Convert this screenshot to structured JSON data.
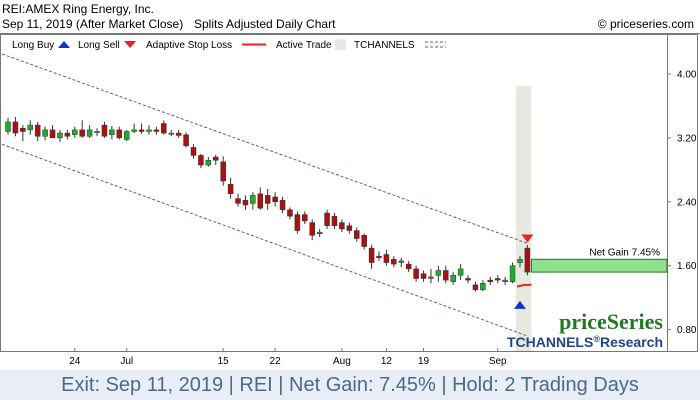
{
  "header": {
    "title": "REI:AMEX Ring Energy, Inc.",
    "subtitle": "Sep 11, 2019 (After Market Close)",
    "chart_type": "Splits Adjusted Daily Chart",
    "copyright": "© priceseries.com"
  },
  "legend": {
    "long_buy": "Long Buy",
    "long_sell": "Long Sell",
    "adaptive_stop": "Adaptive Stop Loss",
    "active_trade": "Active Trade",
    "tchannels": "TCHANNELS"
  },
  "brand": {
    "logo_text": "priceSeries",
    "research_prefix": "TCHANNELS",
    "registered": "®",
    "research_suffix": "Research"
  },
  "footer": {
    "text": "Exit: Sep 11, 2019 | REI | Net Gain: 7.45% | Hold: 2 Trading Days"
  },
  "colors": {
    "up": "#22aa33",
    "down": "#aa1111",
    "buy_arrow": "#1133cc",
    "sell_arrow": "#ee2222",
    "stop_line": "#ee2222",
    "active_trade": "#e6e9df",
    "channel": "#4a6a8a",
    "gain_box": "#8fe08f",
    "logo": "#227722",
    "research": "#224488",
    "footer_text": "#4a6a8a",
    "footer_bg": "#e9eef6"
  },
  "chart_data": {
    "type": "candlestick",
    "ylim": [
      0.52,
      4.5
    ],
    "yticks": [
      "4.00",
      "3.20",
      "2.40",
      "1.60",
      "0.80"
    ],
    "xticks": [
      "24",
      "Jul",
      "15",
      "22",
      "Aug",
      "12",
      "19",
      "Sep"
    ],
    "candles": [
      {
        "o": 3.28,
        "h": 3.45,
        "l": 3.24,
        "c": 3.4
      },
      {
        "o": 3.4,
        "h": 3.46,
        "l": 3.22,
        "c": 3.26
      },
      {
        "o": 3.32,
        "h": 3.36,
        "l": 3.16,
        "c": 3.28
      },
      {
        "o": 3.3,
        "h": 3.42,
        "l": 3.24,
        "c": 3.36
      },
      {
        "o": 3.36,
        "h": 3.4,
        "l": 3.16,
        "c": 3.22
      },
      {
        "o": 3.22,
        "h": 3.34,
        "l": 3.17,
        "c": 3.3
      },
      {
        "o": 3.3,
        "h": 3.36,
        "l": 3.2,
        "c": 3.2
      },
      {
        "o": 3.2,
        "h": 3.3,
        "l": 3.15,
        "c": 3.26
      },
      {
        "o": 3.26,
        "h": 3.3,
        "l": 3.18,
        "c": 3.22
      },
      {
        "o": 3.24,
        "h": 3.34,
        "l": 3.2,
        "c": 3.3
      },
      {
        "o": 3.3,
        "h": 3.42,
        "l": 3.2,
        "c": 3.22
      },
      {
        "o": 3.22,
        "h": 3.36,
        "l": 3.2,
        "c": 3.3
      },
      {
        "o": 3.28,
        "h": 3.32,
        "l": 3.22,
        "c": 3.28
      },
      {
        "o": 3.36,
        "h": 3.4,
        "l": 3.2,
        "c": 3.22
      },
      {
        "o": 3.24,
        "h": 3.35,
        "l": 3.18,
        "c": 3.3
      },
      {
        "o": 3.3,
        "h": 3.34,
        "l": 3.18,
        "c": 3.2
      },
      {
        "o": 3.18,
        "h": 3.3,
        "l": 3.16,
        "c": 3.28
      },
      {
        "o": 3.28,
        "h": 3.38,
        "l": 3.26,
        "c": 3.3
      },
      {
        "o": 3.3,
        "h": 3.38,
        "l": 3.25,
        "c": 3.28
      },
      {
        "o": 3.28,
        "h": 3.36,
        "l": 3.24,
        "c": 3.3
      },
      {
        "o": 3.3,
        "h": 3.34,
        "l": 3.24,
        "c": 3.28
      },
      {
        "o": 3.38,
        "h": 3.42,
        "l": 3.24,
        "c": 3.26
      },
      {
        "o": 3.26,
        "h": 3.3,
        "l": 3.22,
        "c": 3.26
      },
      {
        "o": 3.26,
        "h": 3.3,
        "l": 3.2,
        "c": 3.23
      },
      {
        "o": 3.24,
        "h": 3.27,
        "l": 3.08,
        "c": 3.1
      },
      {
        "o": 3.08,
        "h": 3.12,
        "l": 2.94,
        "c": 2.98
      },
      {
        "o": 2.98,
        "h": 3.0,
        "l": 2.82,
        "c": 2.86
      },
      {
        "o": 2.86,
        "h": 2.96,
        "l": 2.84,
        "c": 2.92
      },
      {
        "o": 2.96,
        "h": 2.99,
        "l": 2.86,
        "c": 2.92
      },
      {
        "o": 2.9,
        "h": 2.97,
        "l": 2.6,
        "c": 2.66
      },
      {
        "o": 2.62,
        "h": 2.7,
        "l": 2.44,
        "c": 2.5
      },
      {
        "o": 2.44,
        "h": 2.5,
        "l": 2.34,
        "c": 2.38
      },
      {
        "o": 2.42,
        "h": 2.48,
        "l": 2.3,
        "c": 2.36
      },
      {
        "o": 2.38,
        "h": 2.52,
        "l": 2.3,
        "c": 2.48
      },
      {
        "o": 2.5,
        "h": 2.58,
        "l": 2.3,
        "c": 2.32
      },
      {
        "o": 2.48,
        "h": 2.56,
        "l": 2.3,
        "c": 2.38
      },
      {
        "o": 2.46,
        "h": 2.52,
        "l": 2.34,
        "c": 2.4
      },
      {
        "o": 2.42,
        "h": 2.46,
        "l": 2.26,
        "c": 2.3
      },
      {
        "o": 2.3,
        "h": 2.33,
        "l": 2.18,
        "c": 2.22
      },
      {
        "o": 2.24,
        "h": 2.28,
        "l": 2.0,
        "c": 2.04
      },
      {
        "o": 2.24,
        "h": 2.28,
        "l": 2.12,
        "c": 2.16
      },
      {
        "o": 2.14,
        "h": 2.18,
        "l": 1.92,
        "c": 1.98
      },
      {
        "o": 2.0,
        "h": 2.06,
        "l": 1.96,
        "c": 2.02
      },
      {
        "o": 2.26,
        "h": 2.3,
        "l": 2.06,
        "c": 2.1
      },
      {
        "o": 2.22,
        "h": 2.26,
        "l": 2.06,
        "c": 2.1
      },
      {
        "o": 2.14,
        "h": 2.18,
        "l": 2.02,
        "c": 2.06
      },
      {
        "o": 2.1,
        "h": 2.14,
        "l": 2.0,
        "c": 2.04
      },
      {
        "o": 2.04,
        "h": 2.08,
        "l": 1.9,
        "c": 1.94
      },
      {
        "o": 1.98,
        "h": 2.0,
        "l": 1.8,
        "c": 1.84
      },
      {
        "o": 1.82,
        "h": 1.86,
        "l": 1.56,
        "c": 1.64
      },
      {
        "o": 1.72,
        "h": 1.78,
        "l": 1.66,
        "c": 1.7
      },
      {
        "o": 1.74,
        "h": 1.8,
        "l": 1.6,
        "c": 1.64
      },
      {
        "o": 1.68,
        "h": 1.72,
        "l": 1.58,
        "c": 1.62
      },
      {
        "o": 1.64,
        "h": 1.7,
        "l": 1.58,
        "c": 1.66
      },
      {
        "o": 1.62,
        "h": 1.66,
        "l": 1.52,
        "c": 1.56
      },
      {
        "o": 1.56,
        "h": 1.6,
        "l": 1.4,
        "c": 1.44
      },
      {
        "o": 1.5,
        "h": 1.54,
        "l": 1.4,
        "c": 1.44
      },
      {
        "o": 1.44,
        "h": 1.56,
        "l": 1.38,
        "c": 1.46
      },
      {
        "o": 1.48,
        "h": 1.6,
        "l": 1.4,
        "c": 1.54
      },
      {
        "o": 1.54,
        "h": 1.6,
        "l": 1.38,
        "c": 1.42
      },
      {
        "o": 1.4,
        "h": 1.52,
        "l": 1.36,
        "c": 1.48
      },
      {
        "o": 1.48,
        "h": 1.62,
        "l": 1.42,
        "c": 1.56
      },
      {
        "o": 1.44,
        "h": 1.48,
        "l": 1.38,
        "c": 1.42
      },
      {
        "o": 1.36,
        "h": 1.4,
        "l": 1.28,
        "c": 1.3
      },
      {
        "o": 1.3,
        "h": 1.42,
        "l": 1.28,
        "c": 1.38
      },
      {
        "o": 1.42,
        "h": 1.46,
        "l": 1.36,
        "c": 1.4
      },
      {
        "o": 1.44,
        "h": 1.48,
        "l": 1.38,
        "c": 1.42
      },
      {
        "o": 1.4,
        "h": 1.46,
        "l": 1.36,
        "c": 1.42
      },
      {
        "o": 1.4,
        "h": 1.64,
        "l": 1.38,
        "c": 1.6
      },
      {
        "o": 1.64,
        "h": 1.72,
        "l": 1.58,
        "c": 1.68
      },
      {
        "o": 1.82,
        "h": 1.86,
        "l": 1.48,
        "c": 1.52
      }
    ],
    "tick_candle_index": [
      9,
      16,
      29,
      36,
      45,
      51,
      56,
      66
    ],
    "active_trade": {
      "start": 69,
      "end": 70
    },
    "long_buy_index": 69,
    "long_sell_index": 70,
    "buy_price": 1.11,
    "sell_price": 1.94,
    "stop_loss": [
      {
        "i": 69,
        "v": 1.34
      },
      {
        "i": 70,
        "v": 1.36
      }
    ],
    "channel": {
      "upper": {
        "start": [
          0,
          4.25
        ],
        "end": [
          70,
          1.88
        ]
      },
      "lower": {
        "start": [
          0,
          3.12
        ],
        "end": [
          70,
          0.72
        ]
      }
    },
    "gain_box": {
      "from": 1.52,
      "to": 1.68,
      "label": "Net Gain 7.45%"
    }
  }
}
